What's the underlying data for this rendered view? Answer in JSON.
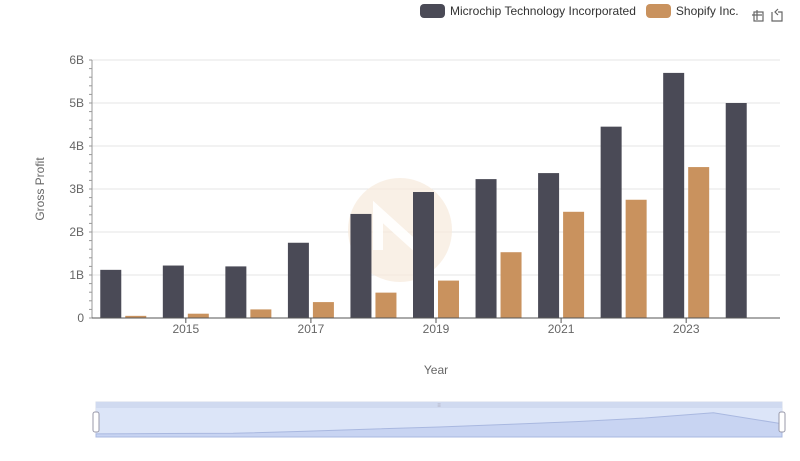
{
  "chart_data": {
    "type": "bar",
    "title": "",
    "xlabel": "Year",
    "ylabel": "Gross Profit",
    "x": [
      2014,
      2015,
      2016,
      2017,
      2018,
      2019,
      2020,
      2021,
      2022,
      2023,
      2024
    ],
    "x_tick_labels": [
      "2015",
      "2017",
      "2019",
      "2021",
      "2023"
    ],
    "y_tick_labels": [
      "0",
      "1B",
      "2B",
      "3B",
      "4B",
      "5B",
      "6B"
    ],
    "ylim": [
      0,
      6000000000
    ],
    "grid": true,
    "legend_position": "top-right",
    "series": [
      {
        "name": "Microchip Technology Incorporated",
        "color": "#4a4a56",
        "values": [
          1120000000,
          1220000000,
          1200000000,
          1750000000,
          2420000000,
          2930000000,
          3230000000,
          3370000000,
          4450000000,
          5700000000,
          5000000000
        ]
      },
      {
        "name": "Shopify Inc.",
        "color": "#c9925e",
        "values": [
          50000000,
          100000000,
          200000000,
          370000000,
          590000000,
          870000000,
          1530000000,
          2470000000,
          2750000000,
          3510000000,
          null
        ]
      }
    ]
  },
  "toolbox": {
    "icons": [
      "zoom-icon",
      "restore-icon"
    ]
  },
  "data_zoom": {
    "start_percent": 0,
    "end_percent": 100,
    "handle_label": "≡"
  }
}
